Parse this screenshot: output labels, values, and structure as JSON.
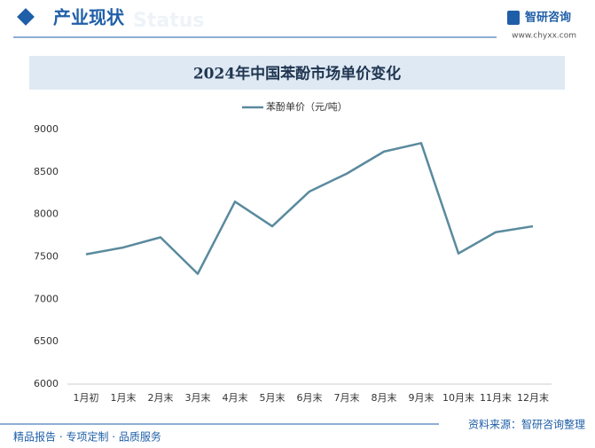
{
  "header": {
    "title": "产业现状",
    "ghost": "Status",
    "logo": "智研咨询",
    "url": "www.chyxx.com"
  },
  "chart_data": {
    "type": "line",
    "title": "2024年中国苯酚市场单价变化",
    "categories": [
      "1月初",
      "1月末",
      "2月末",
      "3月末",
      "4月末",
      "5月末",
      "6月末",
      "7月末",
      "8月末",
      "9月末",
      "10月末",
      "11月末",
      "12月末"
    ],
    "series": [
      {
        "name": "苯酚单价（元/吨）",
        "color": "#5a8a9e",
        "values": [
          7530,
          7610,
          7730,
          7300,
          8150,
          7860,
          8270,
          8480,
          8740,
          8840,
          7540,
          7790,
          7860
        ]
      }
    ],
    "ylim": [
      6000,
      9000
    ],
    "yticks": [
      6000,
      6500,
      7000,
      7500,
      8000,
      8500,
      9000
    ],
    "grid": false,
    "legend": "top"
  },
  "footer": {
    "source": "资料来源：智研咨询整理",
    "slogan": "精品报告 · 专项定制 · 品质服务"
  }
}
